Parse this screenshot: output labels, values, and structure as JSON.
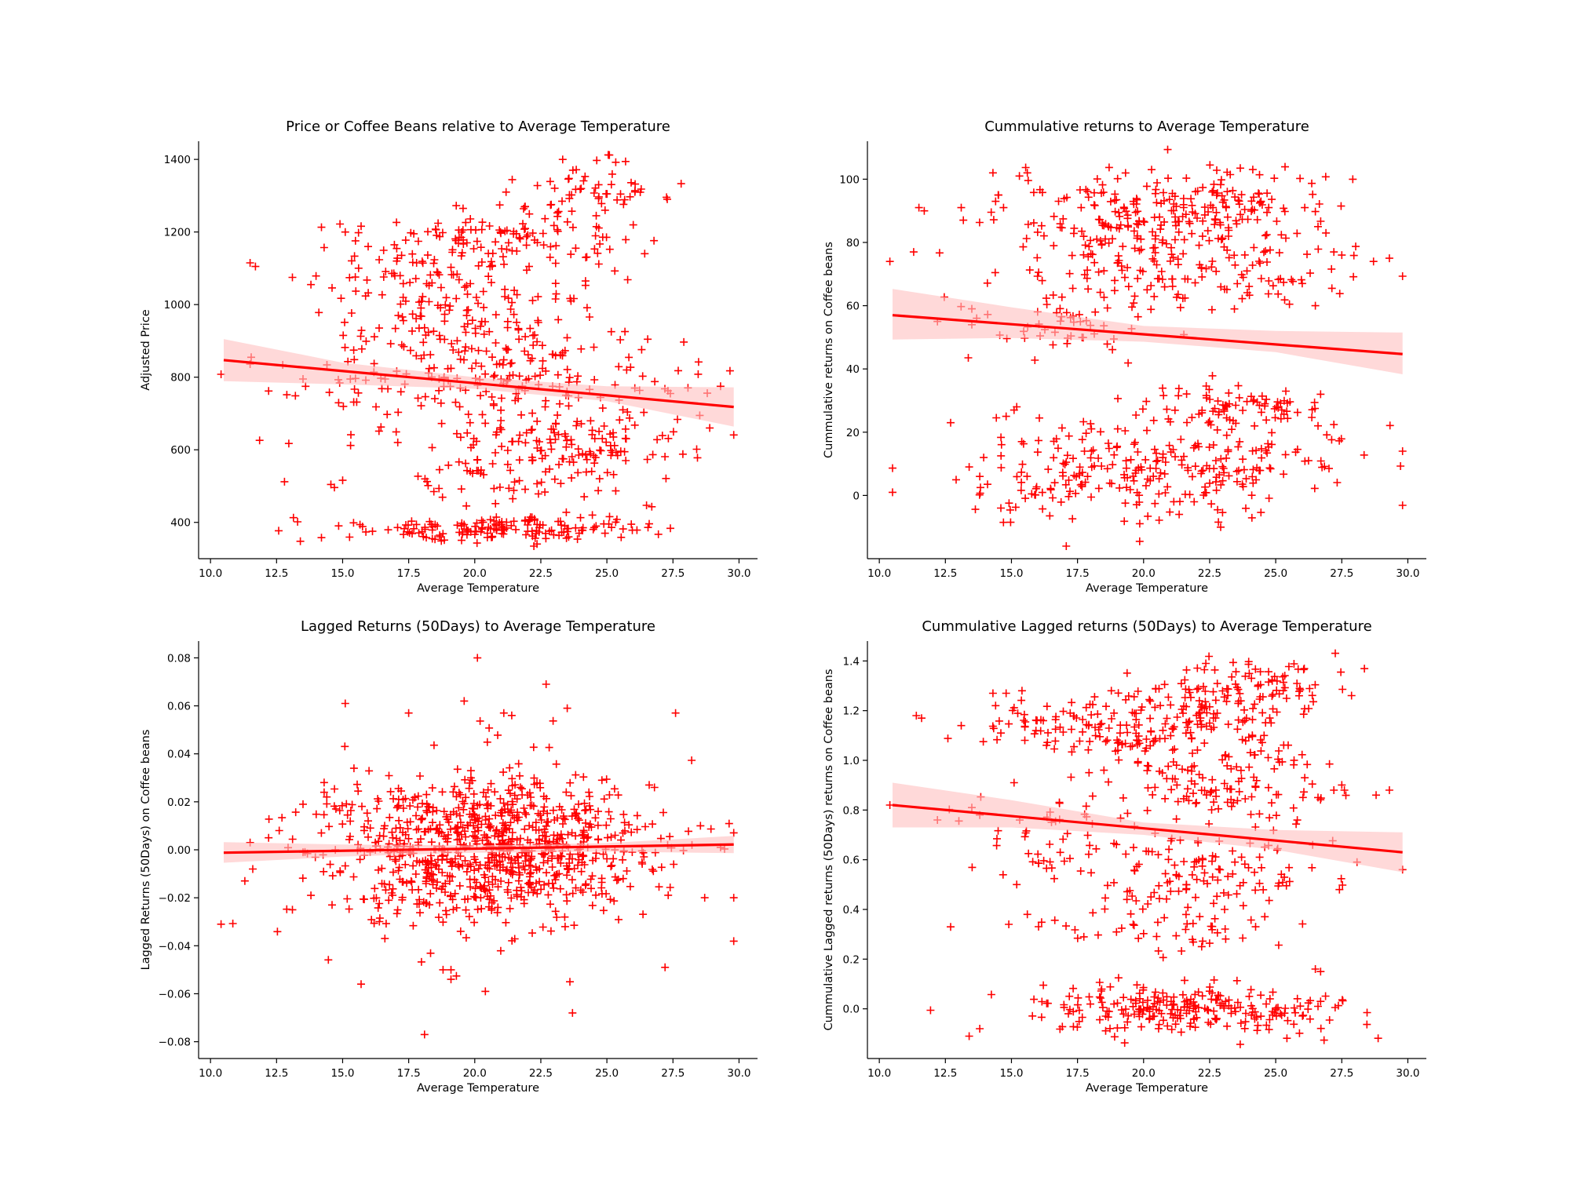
{
  "colors": {
    "points": "#ff0000",
    "fit_line": "#ff0000",
    "ci_band": "#ffc0c0",
    "axes": "#000000"
  },
  "chart_data": [
    {
      "type": "scatter",
      "title": "Price or Coffee Beans relative to Average Temperature",
      "xlabel": "Average Temperature",
      "ylabel": "Adjusted Price",
      "marker": "+",
      "xlim": [
        9.55,
        30.7
      ],
      "ylim": [
        300,
        1450
      ],
      "xticks": [
        "10.0",
        "12.5",
        "15.0",
        "17.5",
        "20.0",
        "22.5",
        "25.0",
        "27.5",
        "30.0"
      ],
      "yticks": [
        "400",
        "600",
        "800",
        "1000",
        "1200",
        "1400"
      ],
      "fit_line": {
        "x": [
          10.5,
          29.8
        ],
        "y": [
          847,
          718
        ]
      },
      "ci_band": {
        "x": [
          10.5,
          15.0,
          20.0,
          25.0,
          29.8
        ],
        "upper": [
          905,
          840,
          800,
          775,
          772
        ],
        "lower": [
          789,
          780,
          768,
          734,
          664
        ]
      },
      "clusters": [
        {
          "x": 18.5,
          "y": 1130,
          "sx": 2.2,
          "sy": 55,
          "n": 90
        },
        {
          "x": 22.5,
          "y": 1180,
          "sx": 2.0,
          "sy": 60,
          "n": 90
        },
        {
          "x": 24.5,
          "y": 1310,
          "sx": 1.5,
          "sy": 40,
          "n": 50
        },
        {
          "x": 19.5,
          "y": 950,
          "sx": 2.6,
          "sy": 55,
          "n": 110
        },
        {
          "x": 22.0,
          "y": 800,
          "sx": 3.0,
          "sy": 60,
          "n": 140
        },
        {
          "x": 23.5,
          "y": 620,
          "sx": 2.3,
          "sy": 45,
          "n": 110
        },
        {
          "x": 21.0,
          "y": 520,
          "sx": 2.5,
          "sy": 45,
          "n": 60
        },
        {
          "x": 21.5,
          "y": 385,
          "sx": 2.8,
          "sy": 18,
          "n": 160
        },
        {
          "x": 16.5,
          "y": 740,
          "sx": 2.0,
          "sy": 70,
          "n": 40
        }
      ],
      "sparse": [
        [
          10.4,
          808
        ],
        [
          11.5,
          1115
        ],
        [
          11.7,
          1105
        ],
        [
          12.2,
          762
        ],
        [
          11.5,
          836
        ],
        [
          12.8,
          512
        ],
        [
          13.1,
          1075
        ],
        [
          13.4,
          348
        ],
        [
          13.5,
          795
        ],
        [
          13.6,
          775
        ],
        [
          13.8,
          1055
        ],
        [
          14.2,
          1213
        ],
        [
          14.3,
          1157
        ],
        [
          14.6,
          1046
        ],
        [
          14.5,
          758
        ],
        [
          14.9,
          1222
        ],
        [
          15.1,
          1200
        ],
        [
          15.2,
          843
        ],
        [
          15.3,
          612
        ],
        [
          15.0,
          516
        ],
        [
          14.2,
          358
        ],
        [
          15.6,
          1198
        ],
        [
          15.7,
          1216
        ],
        [
          15.5,
          1037
        ],
        [
          27.4,
          755
        ],
        [
          27.7,
          818
        ],
        [
          28.8,
          756
        ],
        [
          29.3,
          775
        ],
        [
          29.8,
          641
        ],
        [
          26.5,
          447
        ],
        [
          26.7,
          443
        ],
        [
          26.6,
          396
        ],
        [
          26.4,
          703
        ],
        [
          26.9,
          628
        ]
      ]
    },
    {
      "type": "scatter",
      "title": "Cummulative returns to Average Temperature",
      "xlabel": "Average Temperature",
      "ylabel": "Cummulative returns on Coffee beans",
      "marker": "+",
      "xlim": [
        9.55,
        30.7
      ],
      "ylim": [
        -20,
        112
      ],
      "xticks": [
        "10.0",
        "12.5",
        "15.0",
        "17.5",
        "20.0",
        "22.5",
        "25.0",
        "27.5",
        "30.0"
      ],
      "yticks": [
        "0",
        "20",
        "40",
        "60",
        "80",
        "100"
      ],
      "fit_line": {
        "x": [
          10.5,
          29.8
        ],
        "y": [
          57.0,
          44.7
        ]
      },
      "ci_band": {
        "x": [
          10.5,
          15.0,
          20.0,
          25.0,
          29.8
        ],
        "upper": [
          65.3,
          59.5,
          53.6,
          52.0,
          51.5
        ],
        "lower": [
          49.3,
          49.8,
          48.6,
          45.3,
          38.3
        ]
      },
      "clusters": [
        {
          "x": 19.0,
          "y": 90,
          "sx": 2.0,
          "sy": 6,
          "n": 110
        },
        {
          "x": 23.0,
          "y": 92,
          "sx": 2.0,
          "sy": 6,
          "n": 110
        },
        {
          "x": 21.0,
          "y": 72,
          "sx": 3.2,
          "sy": 8,
          "n": 170
        },
        {
          "x": 17.5,
          "y": 52,
          "sx": 2.0,
          "sy": 4,
          "n": 40
        },
        {
          "x": 23.5,
          "y": 28,
          "sx": 1.8,
          "sy": 4,
          "n": 80
        },
        {
          "x": 21.0,
          "y": 8,
          "sx": 3.2,
          "sy": 8,
          "n": 230
        },
        {
          "x": 16.5,
          "y": 6,
          "sx": 1.8,
          "sy": 8,
          "n": 40
        }
      ],
      "sparse": [
        [
          10.4,
          74
        ],
        [
          11.3,
          77
        ],
        [
          11.5,
          91
        ],
        [
          11.7,
          90
        ],
        [
          12.2,
          55
        ],
        [
          12.7,
          23
        ],
        [
          13.1,
          91
        ],
        [
          13.4,
          9
        ],
        [
          13.5,
          54
        ],
        [
          13.5,
          59
        ],
        [
          13.8,
          6
        ],
        [
          14.3,
          102
        ],
        [
          14.4,
          93
        ],
        [
          14.5,
          95
        ],
        [
          14.7,
          91
        ],
        [
          14.8,
          25
        ],
        [
          15.1,
          27
        ],
        [
          15.2,
          28
        ],
        [
          15.3,
          101
        ],
        [
          15.6,
          102
        ],
        [
          14.6,
          -4
        ],
        [
          26.6,
          85
        ],
        [
          26.9,
          83
        ],
        [
          27.2,
          77
        ],
        [
          27.5,
          76
        ],
        [
          28.7,
          74
        ],
        [
          29.3,
          75
        ],
        [
          29.8,
          14
        ],
        [
          26.7,
          32
        ],
        [
          26.6,
          22
        ],
        [
          26.1,
          91
        ],
        [
          26.5,
          60
        ]
      ]
    },
    {
      "type": "scatter",
      "title": "Lagged Returns (50Days) to Average Temperature",
      "xlabel": "Average Temperature",
      "ylabel": "Lagged Returns (50Days) on Coffee beans",
      "marker": "+",
      "xlim": [
        9.55,
        30.7
      ],
      "ylim": [
        -0.087,
        0.087
      ],
      "xticks": [
        "10.0",
        "12.5",
        "15.0",
        "17.5",
        "20.0",
        "22.5",
        "25.0",
        "27.5",
        "30.0"
      ],
      "yticks": [
        "−0.08",
        "−0.06",
        "−0.04",
        "−0.02",
        "0.00",
        "0.02",
        "0.04",
        "0.06",
        "0.08"
      ],
      "fit_line": {
        "x": [
          10.5,
          29.8
        ],
        "y": [
          -0.0012,
          0.0022
        ]
      },
      "ci_band": {
        "x": [
          10.5,
          15.0,
          20.0,
          25.0,
          29.8
        ],
        "upper": [
          0.0032,
          0.0022,
          0.0018,
          0.0028,
          0.0058
        ],
        "lower": [
          -0.0054,
          -0.0028,
          -0.0012,
          -0.0008,
          -0.0014
        ]
      },
      "clusters": [
        {
          "x": 21.0,
          "y": 0.0,
          "sx": 3.0,
          "sy": 0.016,
          "n": 820
        },
        {
          "x": 16.5,
          "y": 0.0,
          "sx": 1.5,
          "sy": 0.018,
          "n": 70
        }
      ],
      "sparse": [
        [
          10.4,
          -0.031
        ],
        [
          11.3,
          -0.013
        ],
        [
          11.6,
          -0.008
        ],
        [
          11.5,
          0.003
        ],
        [
          12.2,
          0.005
        ],
        [
          12.6,
          0.008
        ],
        [
          13.1,
          -0.025
        ],
        [
          13.5,
          0.019
        ],
        [
          13.5,
          -0.001
        ],
        [
          13.8,
          -0.019
        ],
        [
          14.4,
          0.022
        ],
        [
          14.6,
          -0.023
        ],
        [
          15.1,
          0.061
        ],
        [
          15.7,
          -0.056
        ],
        [
          16.6,
          -0.037
        ],
        [
          17.5,
          0.057
        ],
        [
          18.1,
          -0.077
        ],
        [
          18.8,
          -0.05
        ],
        [
          19.1,
          -0.05
        ],
        [
          19.1,
          -0.054
        ],
        [
          19.6,
          0.062
        ],
        [
          20.1,
          0.08
        ],
        [
          20.4,
          -0.059
        ],
        [
          21.1,
          0.057
        ],
        [
          21.4,
          0.056
        ],
        [
          22.7,
          0.069
        ],
        [
          23.5,
          0.059
        ],
        [
          23.7,
          -0.068
        ],
        [
          23.6,
          -0.055
        ],
        [
          27.2,
          -0.049
        ],
        [
          27.6,
          0.057
        ],
        [
          28.7,
          -0.02
        ],
        [
          29.8,
          -0.02
        ],
        [
          29.3,
          0.001
        ],
        [
          27.3,
          0.002
        ],
        [
          26.6,
          0.027
        ],
        [
          26.8,
          0.026
        ]
      ]
    },
    {
      "type": "scatter",
      "title": "Cummulative Lagged returns (50Days) to Average Temperature",
      "xlabel": "Average Temperature",
      "ylabel": "Cummulative Lagged returns (50Days) returns on Coffee beans",
      "marker": "+",
      "xlim": [
        9.55,
        30.7
      ],
      "ylim": [
        -0.2,
        1.48
      ],
      "xticks": [
        "10.0",
        "12.5",
        "15.0",
        "17.5",
        "20.0",
        "22.5",
        "25.0",
        "27.5",
        "30.0"
      ],
      "yticks": [
        "0.0",
        "0.2",
        "0.4",
        "0.6",
        "0.8",
        "1.0",
        "1.2",
        "1.4"
      ],
      "fit_line": {
        "x": [
          10.5,
          29.8
        ],
        "y": [
          0.82,
          0.63
        ]
      },
      "ci_band": {
        "x": [
          10.5,
          15.0,
          20.0,
          25.0,
          29.8
        ],
        "upper": [
          0.91,
          0.84,
          0.75,
          0.72,
          0.71
        ],
        "lower": [
          0.73,
          0.73,
          0.7,
          0.64,
          0.55
        ]
      },
      "clusters": [
        {
          "x": 18.5,
          "y": 1.12,
          "sx": 2.2,
          "sy": 0.07,
          "n": 130
        },
        {
          "x": 22.5,
          "y": 1.22,
          "sx": 2.0,
          "sy": 0.08,
          "n": 110
        },
        {
          "x": 24.5,
          "y": 1.32,
          "sx": 1.3,
          "sy": 0.04,
          "n": 50
        },
        {
          "x": 23.0,
          "y": 0.92,
          "sx": 2.0,
          "sy": 0.08,
          "n": 120
        },
        {
          "x": 22.5,
          "y": 0.55,
          "sx": 2.5,
          "sy": 0.08,
          "n": 110
        },
        {
          "x": 20.5,
          "y": 0.33,
          "sx": 2.0,
          "sy": 0.06,
          "n": 50
        },
        {
          "x": 21.5,
          "y": 0.0,
          "sx": 3.0,
          "sy": 0.05,
          "n": 240
        },
        {
          "x": 17.0,
          "y": 0.72,
          "sx": 2.0,
          "sy": 0.1,
          "n": 50
        }
      ],
      "sparse": [
        [
          10.4,
          0.82
        ],
        [
          11.4,
          1.18
        ],
        [
          11.6,
          1.17
        ],
        [
          12.2,
          0.76
        ],
        [
          12.7,
          0.33
        ],
        [
          13.1,
          1.14
        ],
        [
          13.4,
          -0.11
        ],
        [
          13.5,
          0.81
        ],
        [
          13.8,
          0.78
        ],
        [
          13.8,
          -0.08
        ],
        [
          14.3,
          1.27
        ],
        [
          14.4,
          1.22
        ],
        [
          14.6,
          1.11
        ],
        [
          14.8,
          1.27
        ],
        [
          14.9,
          0.34
        ],
        [
          15.1,
          0.91
        ],
        [
          15.2,
          0.5
        ],
        [
          15.4,
          1.28
        ],
        [
          15.6,
          0.38
        ],
        [
          27.2,
          0.88
        ],
        [
          27.6,
          0.88
        ],
        [
          28.8,
          0.86
        ],
        [
          29.3,
          0.88
        ],
        [
          29.8,
          0.56
        ],
        [
          26.5,
          0.16
        ],
        [
          26.7,
          0.15
        ],
        [
          26.7,
          0.03
        ],
        [
          26.6,
          0.01
        ],
        [
          26.1,
          0.93
        ],
        [
          26.4,
          0.66
        ]
      ]
    }
  ]
}
